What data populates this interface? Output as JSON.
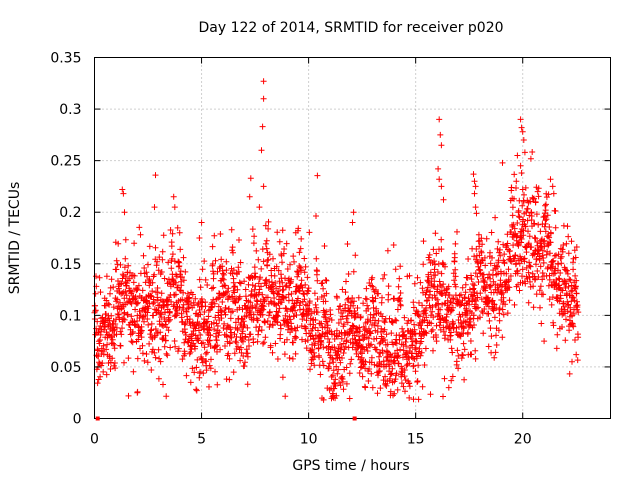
{
  "chart_data": {
    "type": "scatter",
    "title": "Day 122 of 2014, SRMTID for receiver p020",
    "xlabel": "GPS time / hours",
    "ylabel": "SRMTID / TECUs",
    "xlim": [
      0,
      24.1
    ],
    "ylim": [
      0,
      0.35
    ],
    "x_ticks": [
      0,
      5,
      10,
      15,
      20
    ],
    "x_tick_labels": [
      "0",
      "5",
      "10",
      "15",
      "20"
    ],
    "y_ticks": [
      0,
      0.05,
      0.1,
      0.15,
      0.2,
      0.25,
      0.3,
      0.35
    ],
    "y_tick_labels": [
      "0",
      "0.05",
      "0.1",
      "0.15",
      "0.2",
      "0.25",
      "0.3",
      "0.35"
    ],
    "grid": true,
    "marker": "+",
    "color": "#ff0000",
    "series": [
      {
        "name": "SRMTID",
        "trend": [
          [
            0.0,
            0.072
          ],
          [
            0.5,
            0.078
          ],
          [
            1.0,
            0.08
          ],
          [
            1.5,
            0.135
          ],
          [
            2.0,
            0.1
          ],
          [
            2.5,
            0.11
          ],
          [
            3.0,
            0.1
          ],
          [
            3.5,
            0.105
          ],
          [
            4.0,
            0.125
          ],
          [
            4.5,
            0.08
          ],
          [
            5.0,
            0.085
          ],
          [
            5.5,
            0.09
          ],
          [
            6.0,
            0.095
          ],
          [
            6.5,
            0.095
          ],
          [
            7.0,
            0.09
          ],
          [
            7.5,
            0.12
          ],
          [
            8.0,
            0.11
          ],
          [
            8.5,
            0.115
          ],
          [
            9.0,
            0.1
          ],
          [
            9.5,
            0.11
          ],
          [
            10.0,
            0.085
          ],
          [
            10.5,
            0.075
          ],
          [
            11.0,
            0.07
          ],
          [
            11.5,
            0.075
          ],
          [
            12.0,
            0.09
          ],
          [
            12.5,
            0.08
          ],
          [
            13.0,
            0.075
          ],
          [
            13.5,
            0.07
          ],
          [
            14.0,
            0.065
          ],
          [
            14.5,
            0.07
          ],
          [
            15.0,
            0.08
          ],
          [
            15.5,
            0.1
          ],
          [
            16.0,
            0.13
          ],
          [
            16.5,
            0.1
          ],
          [
            17.0,
            0.085
          ],
          [
            17.5,
            0.1
          ],
          [
            18.0,
            0.13
          ],
          [
            18.5,
            0.12
          ],
          [
            19.0,
            0.13
          ],
          [
            19.5,
            0.15
          ],
          [
            20.0,
            0.175
          ],
          [
            20.5,
            0.16
          ],
          [
            21.0,
            0.165
          ],
          [
            21.5,
            0.15
          ],
          [
            22.0,
            0.125
          ],
          [
            22.5,
            0.115
          ]
        ],
        "spread": 0.028,
        "x_start": 0.0,
        "x_end": 22.6,
        "x_step": 0.0085,
        "seed": 7,
        "extra_points": [
          [
            7.9,
            0.327
          ],
          [
            7.9,
            0.31
          ],
          [
            7.85,
            0.283
          ],
          [
            7.8,
            0.26
          ],
          [
            7.9,
            0.225
          ],
          [
            7.3,
            0.233
          ],
          [
            7.25,
            0.215
          ],
          [
            7.7,
            0.205
          ],
          [
            2.85,
            0.236
          ],
          [
            2.8,
            0.205
          ],
          [
            1.3,
            0.222
          ],
          [
            1.35,
            0.218
          ],
          [
            1.4,
            0.2
          ],
          [
            3.7,
            0.215
          ],
          [
            3.75,
            0.205
          ],
          [
            16.1,
            0.29
          ],
          [
            16.15,
            0.275
          ],
          [
            16.2,
            0.265
          ],
          [
            16.05,
            0.242
          ],
          [
            16.1,
            0.232
          ],
          [
            16.2,
            0.225
          ],
          [
            16.3,
            0.212
          ],
          [
            17.7,
            0.237
          ],
          [
            17.75,
            0.23
          ],
          [
            17.8,
            0.225
          ],
          [
            17.75,
            0.218
          ],
          [
            17.8,
            0.205
          ],
          [
            19.9,
            0.29
          ],
          [
            19.95,
            0.282
          ],
          [
            20.0,
            0.278
          ],
          [
            20.05,
            0.27
          ],
          [
            19.75,
            0.255
          ],
          [
            20.1,
            0.258
          ],
          [
            19.9,
            0.245
          ],
          [
            19.95,
            0.238
          ],
          [
            19.7,
            0.23
          ],
          [
            20.0,
            0.222
          ],
          [
            20.05,
            0.21
          ],
          [
            19.8,
            0.2
          ],
          [
            21.3,
            0.232
          ],
          [
            21.4,
            0.225
          ],
          [
            21.45,
            0.218
          ],
          [
            20.6,
            0.21
          ],
          [
            20.7,
            0.22
          ],
          [
            12.1,
            0.2
          ],
          [
            12.05,
            0.19
          ],
          [
            9.5,
            0.182
          ],
          [
            9.4,
            0.18
          ],
          [
            5.0,
            0.19
          ],
          [
            4.9,
            0.175
          ],
          [
            1.85,
            0.17
          ],
          [
            21.0,
            0.075
          ],
          [
            22.3,
            0.055
          ],
          [
            22.5,
            0.062
          ],
          [
            13.0,
            0.03
          ],
          [
            10.7,
            0.018
          ],
          [
            14.7,
            0.02
          ],
          [
            14.0,
            0.024
          ],
          [
            16.55,
            0.03
          ],
          [
            2.0,
            0.025
          ],
          [
            3.2,
            0.033
          ],
          [
            4.5,
            0.035
          ],
          [
            8.8,
            0.04
          ],
          [
            11.3,
            0.022
          ],
          [
            6.5,
            0.045
          ]
        ]
      }
    ],
    "axis_markers": [
      0.15,
      12.15
    ]
  }
}
